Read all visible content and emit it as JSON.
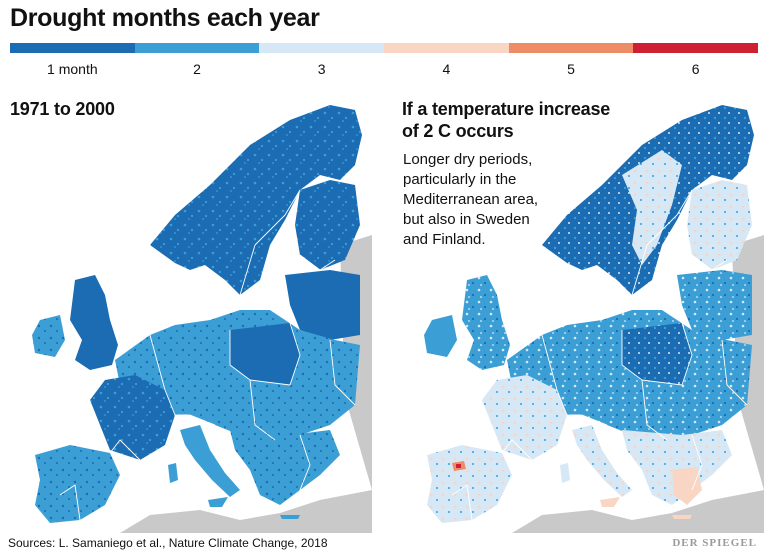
{
  "title": "Drought months each year",
  "legend": {
    "items": [
      {
        "label": "1 month",
        "color": "#1b6cb3"
      },
      {
        "label": "2",
        "color": "#3b9fd6"
      },
      {
        "label": "3",
        "color": "#d6e8f5"
      },
      {
        "label": "4",
        "color": "#f9d6c4"
      },
      {
        "label": "5",
        "color": "#ef8c68"
      },
      {
        "label": "6",
        "color": "#cf1f32"
      }
    ]
  },
  "maps": {
    "left": {
      "title": "1971 to 2000"
    },
    "right": {
      "title_line1": "If a temperature increase",
      "title_line2": "of 2 C occurs",
      "desc_line1": "Longer dry periods,",
      "desc_line2": "particularly in the",
      "desc_line3": "Mediterranean area,",
      "desc_line4": "but also in Sweden",
      "desc_line5": "and Finland."
    }
  },
  "footer": {
    "source": "Sources: L. Samaniego et al., Nature Climate Change, 2018",
    "brand": "DER SPIEGEL"
  }
}
